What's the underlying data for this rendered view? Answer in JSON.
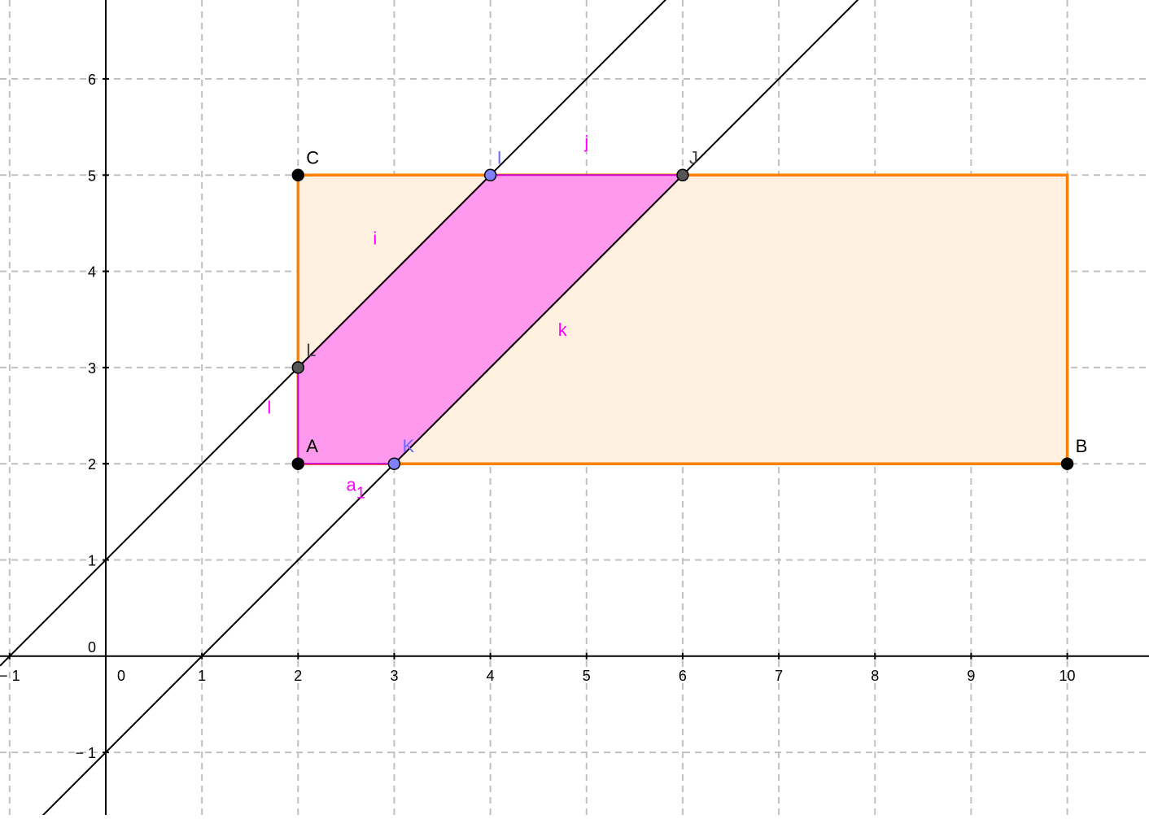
{
  "graph": {
    "x_axis": {
      "range": [
        -1.1,
        10.85
      ],
      "ticks": [
        {
          "value": -1,
          "label": "− 1"
        },
        {
          "value": 0,
          "label": "0"
        },
        {
          "value": 1,
          "label": "1"
        },
        {
          "value": 2,
          "label": "2"
        },
        {
          "value": 3,
          "label": "3"
        },
        {
          "value": 4,
          "label": "4"
        },
        {
          "value": 5,
          "label": "5"
        },
        {
          "value": 6,
          "label": "6"
        },
        {
          "value": 7,
          "label": "7"
        },
        {
          "value": 8,
          "label": "8"
        },
        {
          "value": 9,
          "label": "9"
        },
        {
          "value": 10,
          "label": "10"
        }
      ]
    },
    "y_axis": {
      "range": [
        -1.65,
        6.82
      ],
      "ticks": [
        {
          "value": -1,
          "label": "− 1"
        },
        {
          "value": 1,
          "label": "1"
        },
        {
          "value": 2,
          "label": "2"
        },
        {
          "value": 3,
          "label": "3"
        },
        {
          "value": 4,
          "label": "4"
        },
        {
          "value": 5,
          "label": "5"
        },
        {
          "value": 6,
          "label": "6"
        }
      ],
      "origin_label": "0"
    },
    "grid": true,
    "colors": {
      "rectangle_stroke": "#ff8000",
      "rectangle_fill": "#fff0e0",
      "parallelogram_stroke": "#cc00cc",
      "parallelogram_fill": "#ff99ee",
      "segment_label": "#ff00ff",
      "line": "#000000",
      "grid": "#c0c0c0"
    },
    "rectangle": [
      [
        2,
        2
      ],
      [
        10,
        2
      ],
      [
        10,
        5
      ],
      [
        2,
        5
      ]
    ],
    "parallelogram": [
      [
        2,
        2
      ],
      [
        3,
        2
      ],
      [
        6,
        5
      ],
      [
        4,
        5
      ],
      [
        2,
        3
      ]
    ],
    "lines": [
      {
        "name": "line-through-L-I",
        "slope": 1,
        "intercept": 1
      },
      {
        "name": "line-through-K-J",
        "slope": 1,
        "intercept": -1
      }
    ],
    "points": [
      {
        "name": "A",
        "label": "A",
        "x": 2,
        "y": 2,
        "fill": "#000000",
        "label_color": "#000000"
      },
      {
        "name": "B",
        "label": "B",
        "x": 10,
        "y": 2,
        "fill": "#000000",
        "label_color": "#000000"
      },
      {
        "name": "C",
        "label": "C",
        "x": 2,
        "y": 5,
        "fill": "#000000",
        "label_color": "#000000"
      },
      {
        "name": "I",
        "label": "I",
        "x": 4,
        "y": 5,
        "fill": "#8080ff",
        "label_color": "#6a6aff"
      },
      {
        "name": "J",
        "label": "J",
        "x": 6,
        "y": 5,
        "fill": "#555555",
        "label_color": "#444444"
      },
      {
        "name": "K",
        "label": "K",
        "x": 3,
        "y": 2,
        "fill": "#8080ff",
        "label_color": "#6a6aff"
      },
      {
        "name": "L",
        "label": "L",
        "x": 2,
        "y": 3,
        "fill": "#555555",
        "label_color": "#444444"
      }
    ],
    "segment_labels": [
      {
        "name": "i",
        "text": "i",
        "x": 2.8,
        "y": 4.28
      },
      {
        "name": "j",
        "text": "j",
        "x": 5.0,
        "y": 5.28
      },
      {
        "name": "k",
        "text": "k",
        "x": 4.75,
        "y": 3.33
      },
      {
        "name": "l",
        "text": "l",
        "x": 1.7,
        "y": 2.52
      },
      {
        "name": "a1",
        "text": "a",
        "subscript": "1",
        "x": 2.6,
        "y": 1.72
      }
    ]
  }
}
